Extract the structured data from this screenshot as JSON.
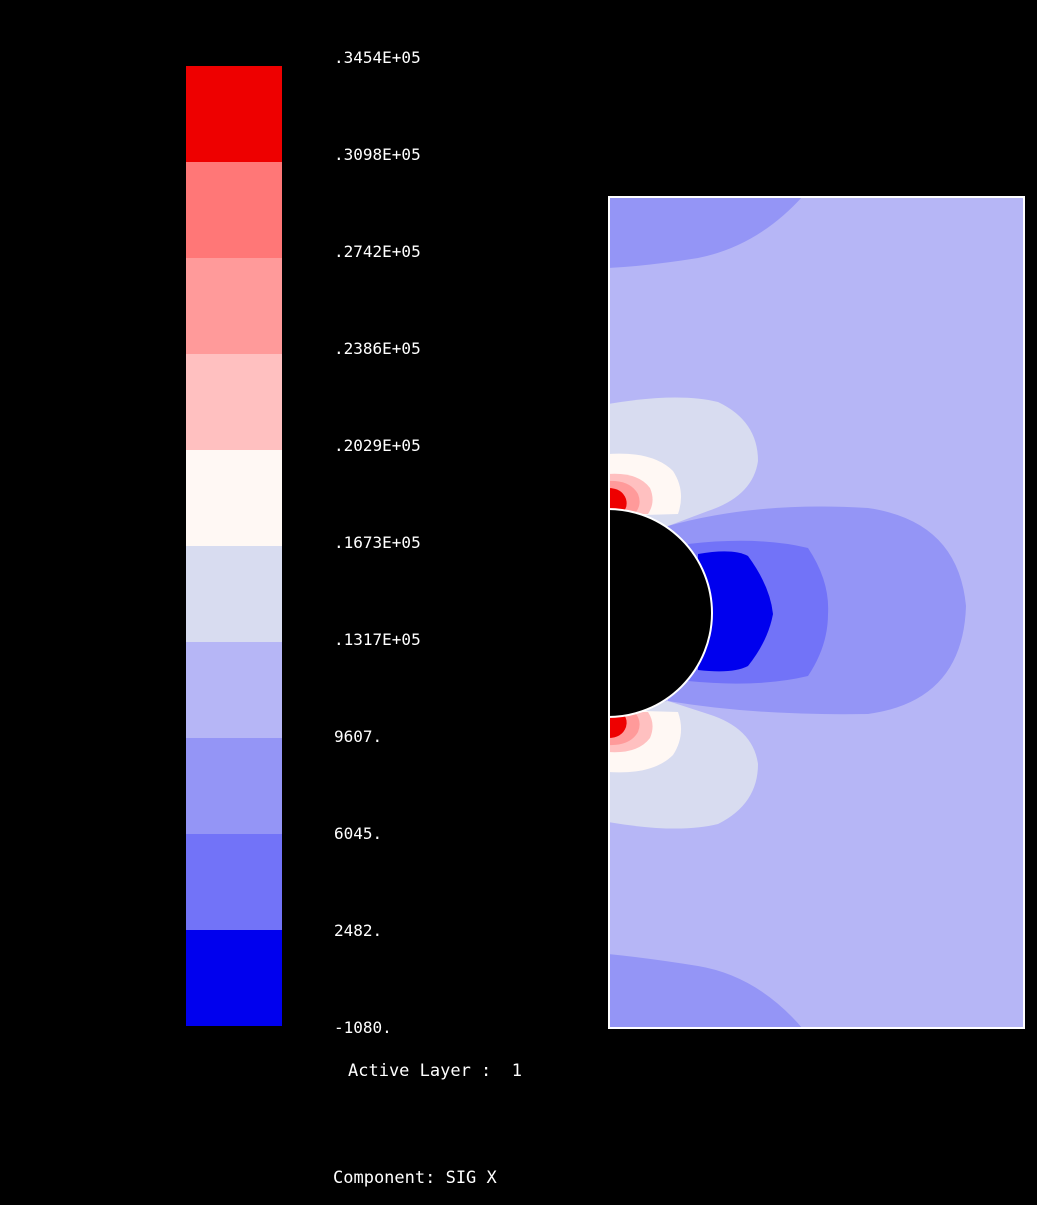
{
  "legend": {
    "colors": [
      "#ee0000",
      "#ff7777",
      "#ff9a9a",
      "#ffc0c0",
      "#fff8f4",
      "#d8dcf0",
      "#b6b6f6",
      "#9495f6",
      "#7273f8",
      "#0000ee"
    ],
    "tick_labels": [
      ".3454E+05",
      ".3098E+05",
      ".2742E+05",
      ".2386E+05",
      ".2029E+05",
      ".1673E+05",
      ".1317E+05",
      "9607.",
      "6045.",
      "2482.",
      "-1080."
    ]
  },
  "plot": {
    "background_color": "#b6b6f6",
    "border_color": "#ffffff",
    "hole_color": "#000000"
  },
  "info": {
    "active_layer_label": "Active Layer :  1",
    "component_label": "Component: SIG X"
  }
}
